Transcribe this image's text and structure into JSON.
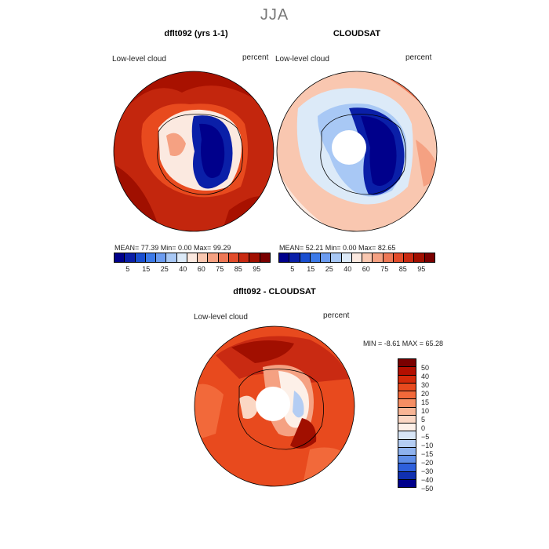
{
  "title": "JJA",
  "panels": {
    "left": {
      "title": "dflt092 (yrs 1-1)",
      "field_label": "Low-level cloud",
      "units": "percent",
      "stats": "MEAN=   77.39   Min=     0.00   Max=   99.29"
    },
    "right": {
      "title": "CLOUDSAT",
      "field_label": "Low-level cloud",
      "units": "percent",
      "stats": "MEAN=   52.21   Min=     0.00   Max=   82.65"
    },
    "diff": {
      "title": "dflt092 - CLOUDSAT",
      "field_label": "Low-level cloud",
      "units": "percent",
      "stats": "MIN =   -8.61  MAX =   65.28"
    }
  },
  "colorbar_abs": {
    "colors": [
      "#00008b",
      "#0a1fa8",
      "#1a4fd0",
      "#3d7ae8",
      "#6c9cf0",
      "#a8c8f5",
      "#dceaf8",
      "#fbe9e0",
      "#f9c7b0",
      "#f5a182",
      "#ee7856",
      "#e24c2b",
      "#c92a12",
      "#a10f00",
      "#7a0000"
    ],
    "ticks": [
      "5",
      "15",
      "25",
      "40",
      "60",
      "75",
      "85",
      "95"
    ]
  },
  "colorbar_diff": {
    "colors": [
      "#7a0000",
      "#b30f00",
      "#d42a0a",
      "#e84a1e",
      "#f2693a",
      "#f58e63",
      "#f8b595",
      "#fbd7c4",
      "#fdf0e8",
      "#d8e6f7",
      "#b4cdf3",
      "#8eb2ee",
      "#5f8ee8",
      "#2e60dc",
      "#1030b0",
      "#00008b"
    ],
    "ticks": [
      "50",
      "40",
      "30",
      "20",
      "15",
      "10",
      "5",
      "0",
      "−5",
      "−10",
      "−15",
      "−20",
      "−30",
      "−40",
      "−50"
    ]
  }
}
